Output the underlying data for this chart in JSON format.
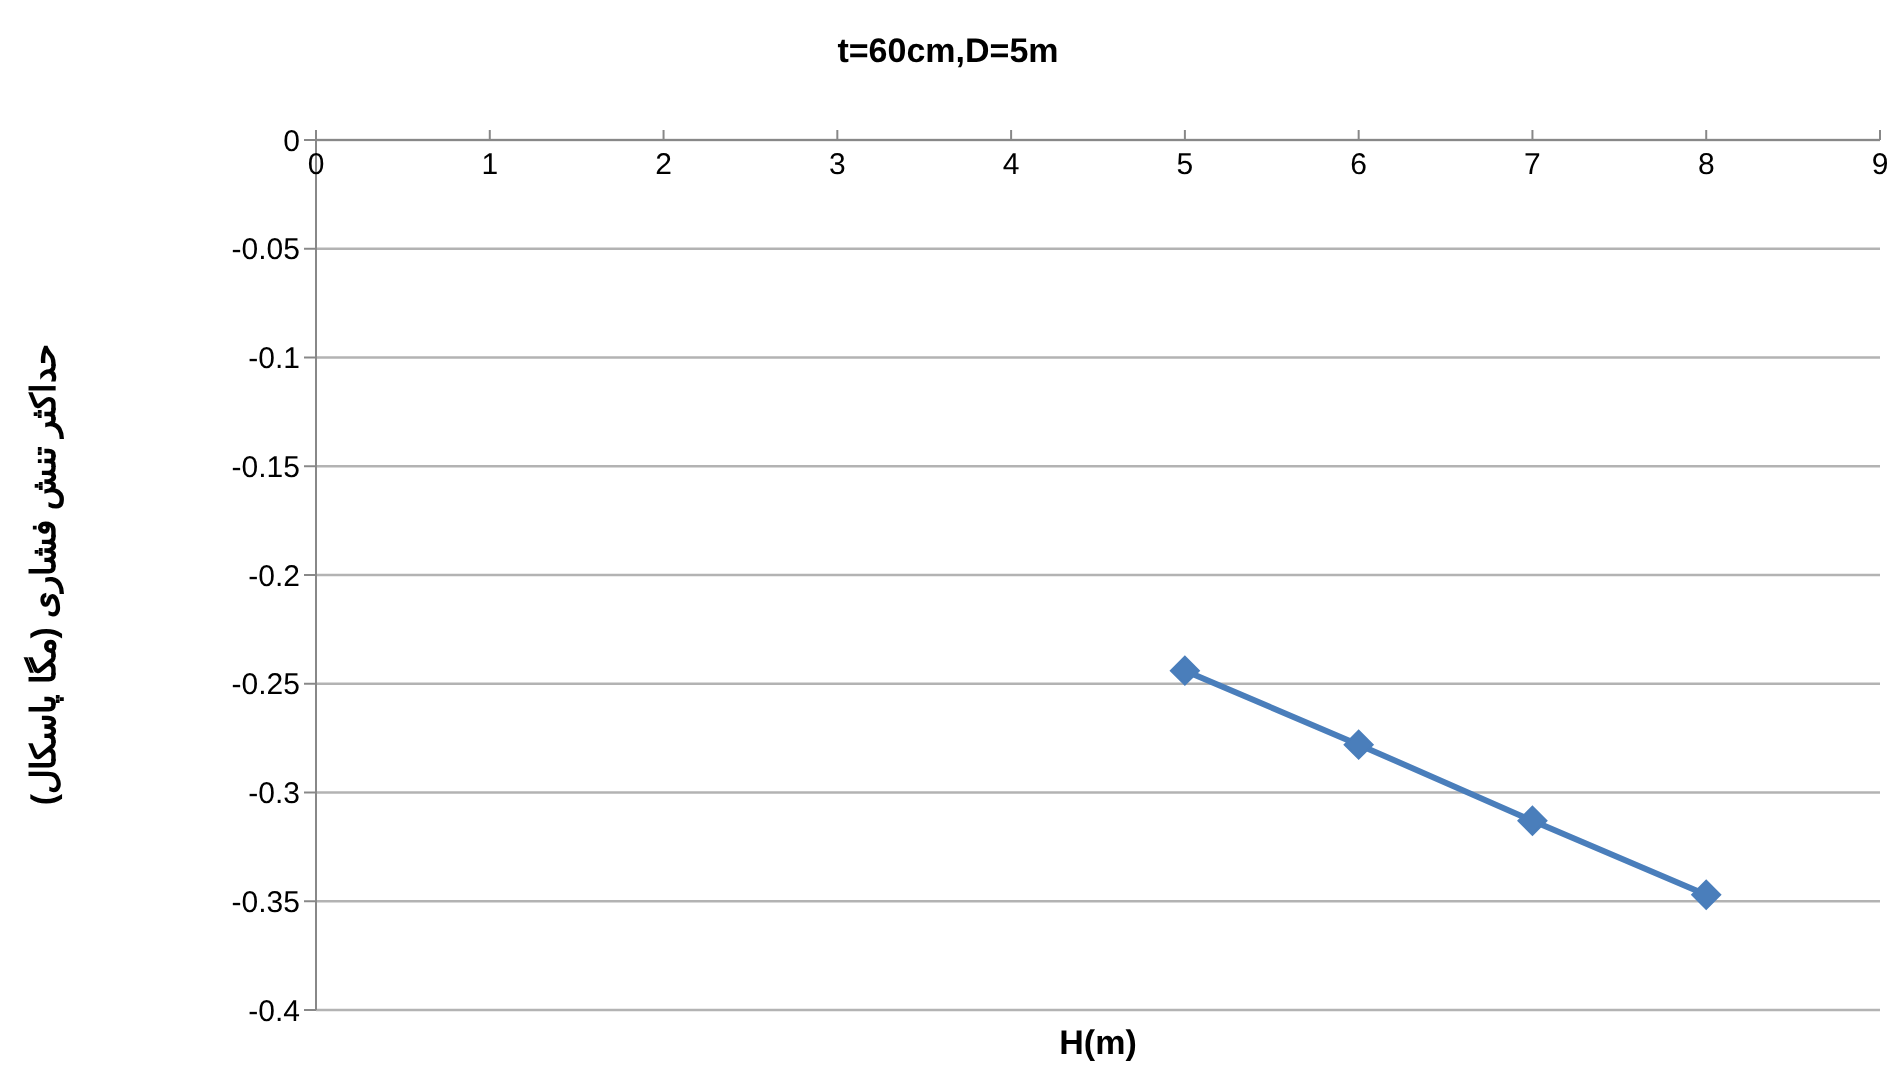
{
  "chart_data": {
    "type": "line",
    "title": "t=60cm,D=5m",
    "xlabel": "H(m)",
    "ylabel": "حداکثر تنش فشاری (مگا پاسکال)",
    "x": [
      5,
      6,
      7,
      8
    ],
    "series": [
      {
        "color": "#4a7ebb",
        "values": [
          -0.244,
          -0.278,
          -0.313,
          -0.347
        ]
      }
    ],
    "xlim": [
      0,
      9
    ],
    "xticks": [
      0,
      1,
      2,
      3,
      4,
      5,
      6,
      7,
      8,
      9
    ],
    "ylim": [
      -0.4,
      0
    ],
    "yticks": [
      -0.4,
      -0.35,
      -0.3,
      -0.25,
      -0.2,
      -0.15,
      -0.1,
      -0.05,
      0
    ],
    "grid": "y",
    "marker": "diamond",
    "line_style": "solid",
    "legend": false
  }
}
